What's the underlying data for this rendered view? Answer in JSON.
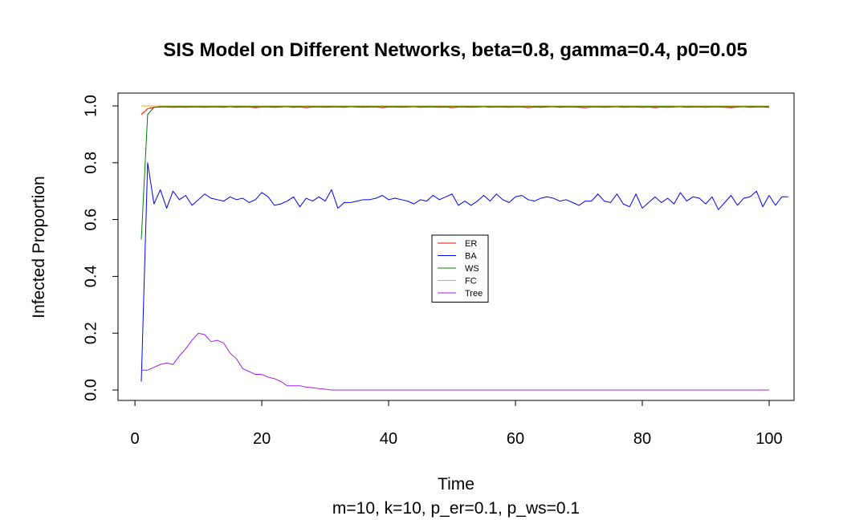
{
  "chart_data": {
    "type": "line",
    "title": "SIS Model on Different Networks, beta=0.8, gamma=0.4, p0=0.05",
    "xlabel": "Time",
    "ylabel": "Infected Proportion",
    "subtitle": "m=10, k=10, p_er=0.1, p_ws=0.1",
    "xlim": [
      1,
      100
    ],
    "ylim": [
      0,
      1
    ],
    "xticks": [
      0,
      20,
      40,
      60,
      80,
      100
    ],
    "yticks": [
      0.0,
      0.2,
      0.4,
      0.6,
      0.8,
      1.0
    ],
    "ytick_labels": [
      "0.0",
      "0.2",
      "0.4",
      "0.6",
      "0.8",
      "1.0"
    ],
    "legend_position": "center",
    "series": [
      {
        "name": "ER",
        "color": "#ff0000",
        "values": [
          0.97,
          0.99,
          0.995,
          0.996,
          0.996,
          0.995,
          0.996,
          0.995,
          0.996,
          0.996,
          0.995,
          0.996,
          0.996,
          0.995,
          0.997,
          0.995,
          0.996,
          0.996,
          0.994,
          0.996,
          0.996,
          0.995,
          0.996,
          0.997,
          0.995,
          0.996,
          0.994,
          0.996,
          0.996,
          0.995,
          0.996,
          0.996,
          0.995,
          0.997,
          0.996,
          0.995,
          0.996,
          0.996,
          0.994,
          0.996,
          0.996,
          0.995,
          0.996,
          0.997,
          0.995,
          0.996,
          0.996,
          0.995,
          0.996,
          0.994,
          0.996,
          0.996,
          0.995,
          0.996,
          0.997,
          0.995,
          0.996,
          0.996,
          0.995,
          0.996,
          0.996,
          0.994,
          0.996,
          0.995,
          0.996,
          0.997,
          0.995,
          0.996,
          0.996,
          0.995,
          0.994,
          0.996,
          0.996,
          0.995,
          0.996,
          0.997,
          0.995,
          0.996,
          0.996,
          0.995,
          0.996,
          0.994,
          0.996,
          0.995,
          0.996,
          0.997,
          0.995,
          0.996,
          0.996,
          0.995,
          0.996,
          0.996,
          0.995,
          0.994,
          0.996,
          0.997,
          0.995,
          0.996,
          0.996,
          0.995
        ]
      },
      {
        "name": "BA",
        "color": "#0000ff",
        "values": [
          0.03,
          0.8,
          0.655,
          0.705,
          0.64,
          0.7,
          0.67,
          0.685,
          0.65,
          0.67,
          0.69,
          0.675,
          0.67,
          0.665,
          0.68,
          0.67,
          0.675,
          0.66,
          0.67,
          0.695,
          0.68,
          0.65,
          0.655,
          0.665,
          0.68,
          0.645,
          0.675,
          0.665,
          0.68,
          0.665,
          0.705,
          0.64,
          0.66,
          0.66,
          0.665,
          0.67,
          0.67,
          0.675,
          0.685,
          0.67,
          0.675,
          0.67,
          0.665,
          0.655,
          0.67,
          0.665,
          0.685,
          0.67,
          0.68,
          0.69,
          0.65,
          0.665,
          0.65,
          0.665,
          0.685,
          0.665,
          0.69,
          0.67,
          0.66,
          0.68,
          0.685,
          0.67,
          0.665,
          0.675,
          0.68,
          0.675,
          0.665,
          0.67,
          0.66,
          0.65,
          0.665,
          0.665,
          0.69,
          0.665,
          0.66,
          0.69,
          0.655,
          0.645,
          0.69,
          0.64,
          0.66,
          0.68,
          0.66,
          0.675,
          0.655,
          0.695,
          0.665,
          0.68,
          0.675,
          0.655,
          0.68,
          0.635,
          0.66,
          0.685,
          0.65,
          0.675,
          0.68,
          0.7,
          0.645,
          0.685,
          0.65,
          0.68,
          0.68
        ]
      },
      {
        "name": "WS",
        "color": "#008000",
        "values": [
          0.53,
          0.97,
          0.995,
          0.997,
          0.998,
          0.998,
          0.997,
          0.998,
          0.998,
          0.997,
          0.998,
          0.998,
          0.997,
          0.998,
          0.998,
          0.997,
          0.998,
          0.998,
          0.997,
          0.998,
          0.998,
          0.997,
          0.998,
          0.998,
          0.997,
          0.998,
          0.998,
          0.997,
          0.998,
          0.998,
          0.997,
          0.998,
          0.998,
          0.997,
          0.998,
          0.998,
          0.997,
          0.998,
          0.998,
          0.997,
          0.998,
          0.998,
          0.997,
          0.998,
          0.998,
          0.997,
          0.998,
          0.998,
          0.997,
          0.998,
          0.998,
          0.997,
          0.998,
          0.998,
          0.997,
          0.998,
          0.998,
          0.997,
          0.998,
          0.998,
          0.997,
          0.998,
          0.998,
          0.997,
          0.998,
          0.998,
          0.997,
          0.998,
          0.998,
          0.997,
          0.998,
          0.998,
          0.997,
          0.998,
          0.998,
          0.997,
          0.998,
          0.998,
          0.997,
          0.998,
          0.998,
          0.997,
          0.998,
          0.998,
          0.997,
          0.998,
          0.998,
          0.997,
          0.998,
          0.998,
          0.997,
          0.998,
          0.998,
          0.997,
          0.998,
          0.998,
          0.997,
          0.998,
          0.998,
          0.997
        ]
      },
      {
        "name": "FC",
        "color": "#ffa500",
        "values": [
          1.0,
          1.0,
          1.0,
          1.0,
          1.0,
          1.0,
          1.0,
          1.0,
          1.0,
          1.0,
          1.0,
          1.0,
          1.0,
          1.0,
          1.0,
          1.0,
          1.0,
          1.0,
          1.0,
          1.0,
          1.0,
          1.0,
          1.0,
          1.0,
          1.0,
          1.0,
          1.0,
          1.0,
          1.0,
          1.0,
          1.0,
          1.0,
          1.0,
          1.0,
          1.0,
          1.0,
          1.0,
          1.0,
          1.0,
          1.0,
          1.0,
          1.0,
          1.0,
          1.0,
          1.0,
          1.0,
          1.0,
          1.0,
          1.0,
          1.0,
          1.0,
          1.0,
          1.0,
          1.0,
          1.0,
          1.0,
          1.0,
          1.0,
          1.0,
          1.0,
          1.0,
          1.0,
          1.0,
          1.0,
          1.0,
          1.0,
          1.0,
          1.0,
          1.0,
          1.0,
          1.0,
          1.0,
          1.0,
          1.0,
          1.0,
          1.0,
          1.0,
          1.0,
          1.0,
          1.0,
          1.0,
          1.0,
          1.0,
          1.0,
          1.0,
          1.0,
          1.0,
          1.0,
          1.0,
          1.0,
          1.0,
          1.0,
          1.0,
          1.0,
          1.0,
          1.0,
          1.0,
          1.0,
          1.0,
          1.0
        ]
      },
      {
        "name": "Tree",
        "color": "#a020f0",
        "values": [
          0.07,
          0.07,
          0.08,
          0.09,
          0.095,
          0.09,
          0.12,
          0.145,
          0.175,
          0.2,
          0.195,
          0.17,
          0.175,
          0.165,
          0.13,
          0.11,
          0.075,
          0.065,
          0.055,
          0.055,
          0.045,
          0.04,
          0.03,
          0.015,
          0.015,
          0.015,
          0.01,
          0.008,
          0.005,
          0.003,
          0.0,
          0.0,
          0.0,
          0.0,
          0.0,
          0.0,
          0.0,
          0.0,
          0.0,
          0.0,
          0.0,
          0.0,
          0.0,
          0.0,
          0.0,
          0.0,
          0.0,
          0.0,
          0.0,
          0.0,
          0.0,
          0.0,
          0.0,
          0.0,
          0.0,
          0.0,
          0.0,
          0.0,
          0.0,
          0.0,
          0.0,
          0.0,
          0.0,
          0.0,
          0.0,
          0.0,
          0.0,
          0.0,
          0.0,
          0.0,
          0.0,
          0.0,
          0.0,
          0.0,
          0.0,
          0.0,
          0.0,
          0.0,
          0.0,
          0.0,
          0.0,
          0.0,
          0.0,
          0.0,
          0.0,
          0.0,
          0.0,
          0.0,
          0.0,
          0.0,
          0.0,
          0.0,
          0.0,
          0.0,
          0.0,
          0.0,
          0.0,
          0.0,
          0.0,
          0.0
        ]
      }
    ]
  }
}
